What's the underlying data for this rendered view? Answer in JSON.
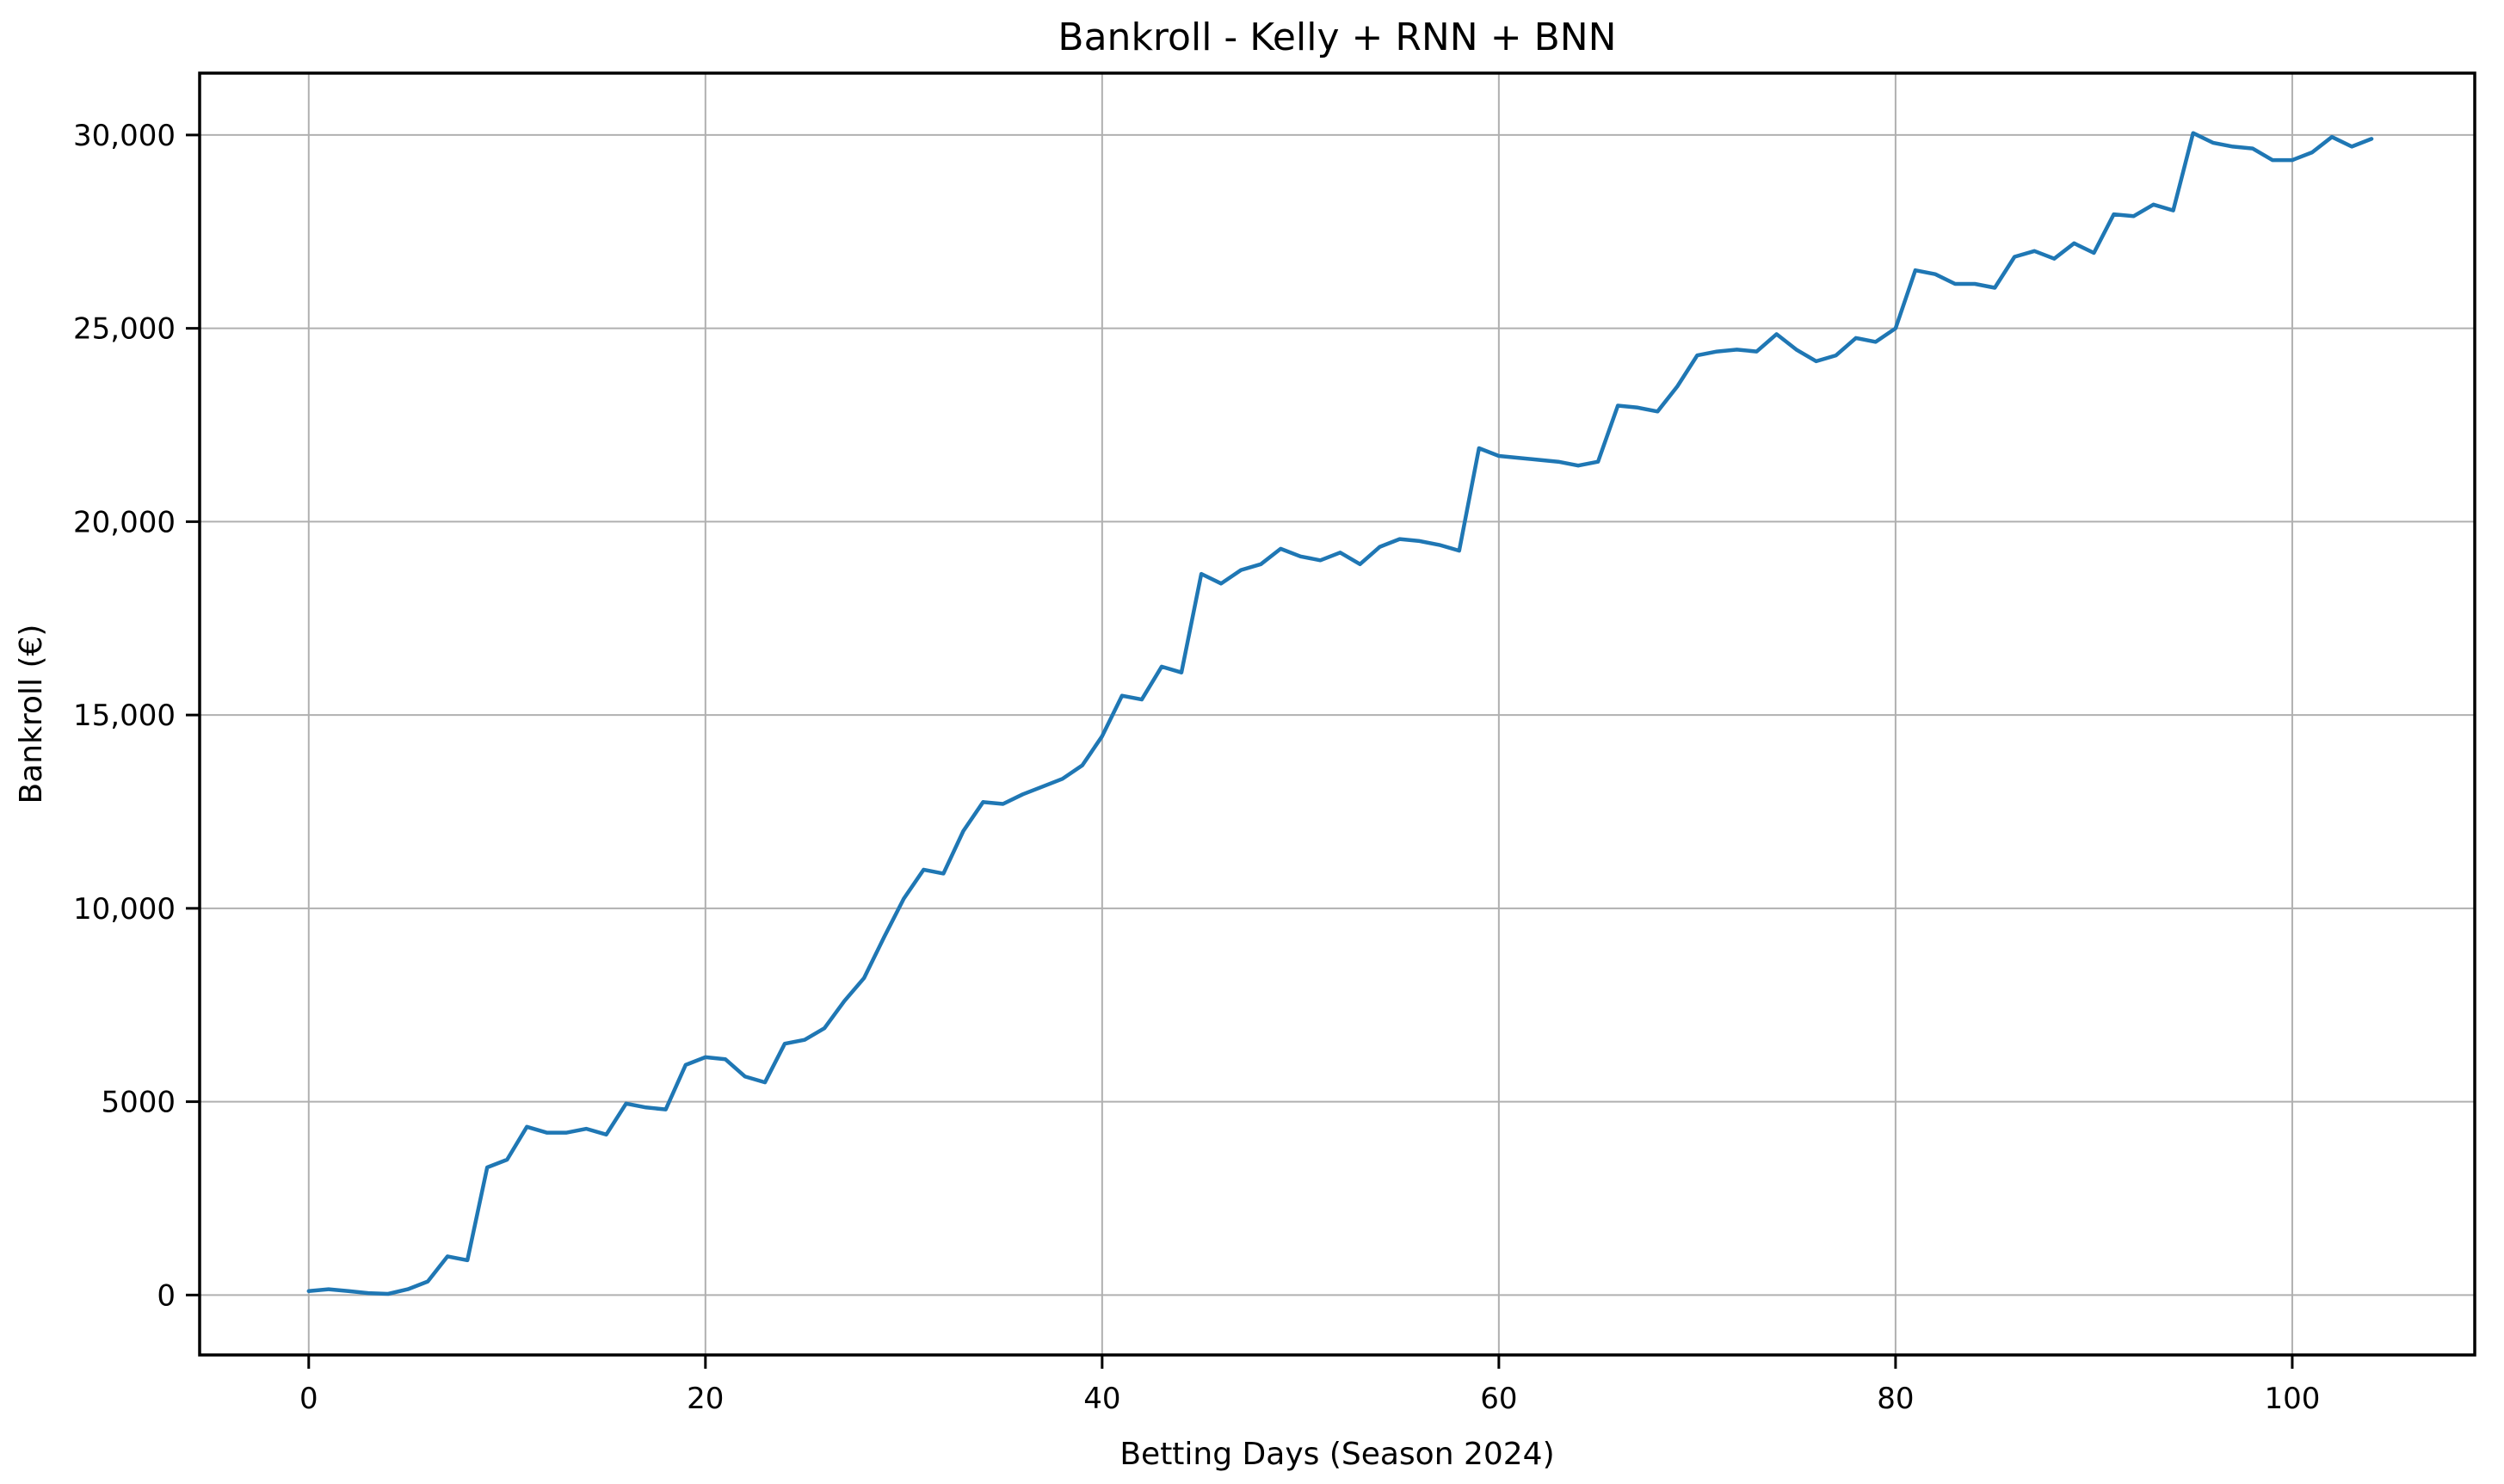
{
  "figure": {
    "background": "#ffffff"
  },
  "chart_data": {
    "type": "line",
    "title": "Bankroll - Kelly + RNN + BNN",
    "xlabel": "Betting Days (Season 2024)",
    "ylabel": "Bankroll (€)",
    "grid": true,
    "legend_position": "none",
    "line_color": "#1f77b4",
    "grid_color": "#b0b0b0",
    "spine_color": "#000000",
    "xlim": [
      -5.5,
      109.2
    ],
    "ylim": [
      -1550,
      31600
    ],
    "x_ticks": [
      {
        "v": 0,
        "label": "0"
      },
      {
        "v": 20,
        "label": "20"
      },
      {
        "v": 40,
        "label": "40"
      },
      {
        "v": 60,
        "label": "60"
      },
      {
        "v": 80,
        "label": "80"
      },
      {
        "v": 100,
        "label": "100"
      }
    ],
    "y_ticks": [
      {
        "v": 0,
        "label": "0"
      },
      {
        "v": 5000,
        "label": "5000"
      },
      {
        "v": 10000,
        "label": "10,000"
      },
      {
        "v": 15000,
        "label": "15,000"
      },
      {
        "v": 20000,
        "label": "20,000"
      },
      {
        "v": 25000,
        "label": "25,000"
      },
      {
        "v": 30000,
        "label": "30,000"
      }
    ],
    "series": [
      {
        "name": "bankroll",
        "x_start": 0,
        "x_step": 1,
        "values": [
          100,
          150,
          100,
          50,
          30,
          150,
          350,
          1000,
          900,
          3300,
          3500,
          4350,
          4200,
          4200,
          4300,
          4150,
          4950,
          4850,
          4800,
          5950,
          6150,
          6100,
          5650,
          5500,
          6500,
          6600,
          6900,
          7600,
          8200,
          9250,
          10250,
          11000,
          10900,
          12000,
          12750,
          12700,
          12950,
          13150,
          13350,
          13700,
          14450,
          15500,
          15400,
          16250,
          16100,
          18650,
          18400,
          18750,
          18900,
          19300,
          19100,
          19000,
          19200,
          18900,
          19350,
          19550,
          19500,
          19400,
          19250,
          21900,
          21700,
          21650,
          21600,
          21550,
          21450,
          21550,
          23000,
          22950,
          22850,
          23500,
          24300,
          24400,
          24450,
          24400,
          24850,
          24450,
          24150,
          24300,
          24750,
          24650,
          25000,
          26500,
          26400,
          26150,
          26150,
          26050,
          26850,
          27000,
          26800,
          27200,
          26950,
          27950,
          27900,
          28200,
          28050,
          30050,
          29800,
          29700,
          29650,
          29350,
          29350,
          29550,
          29950,
          29700,
          29900
        ]
      }
    ]
  }
}
